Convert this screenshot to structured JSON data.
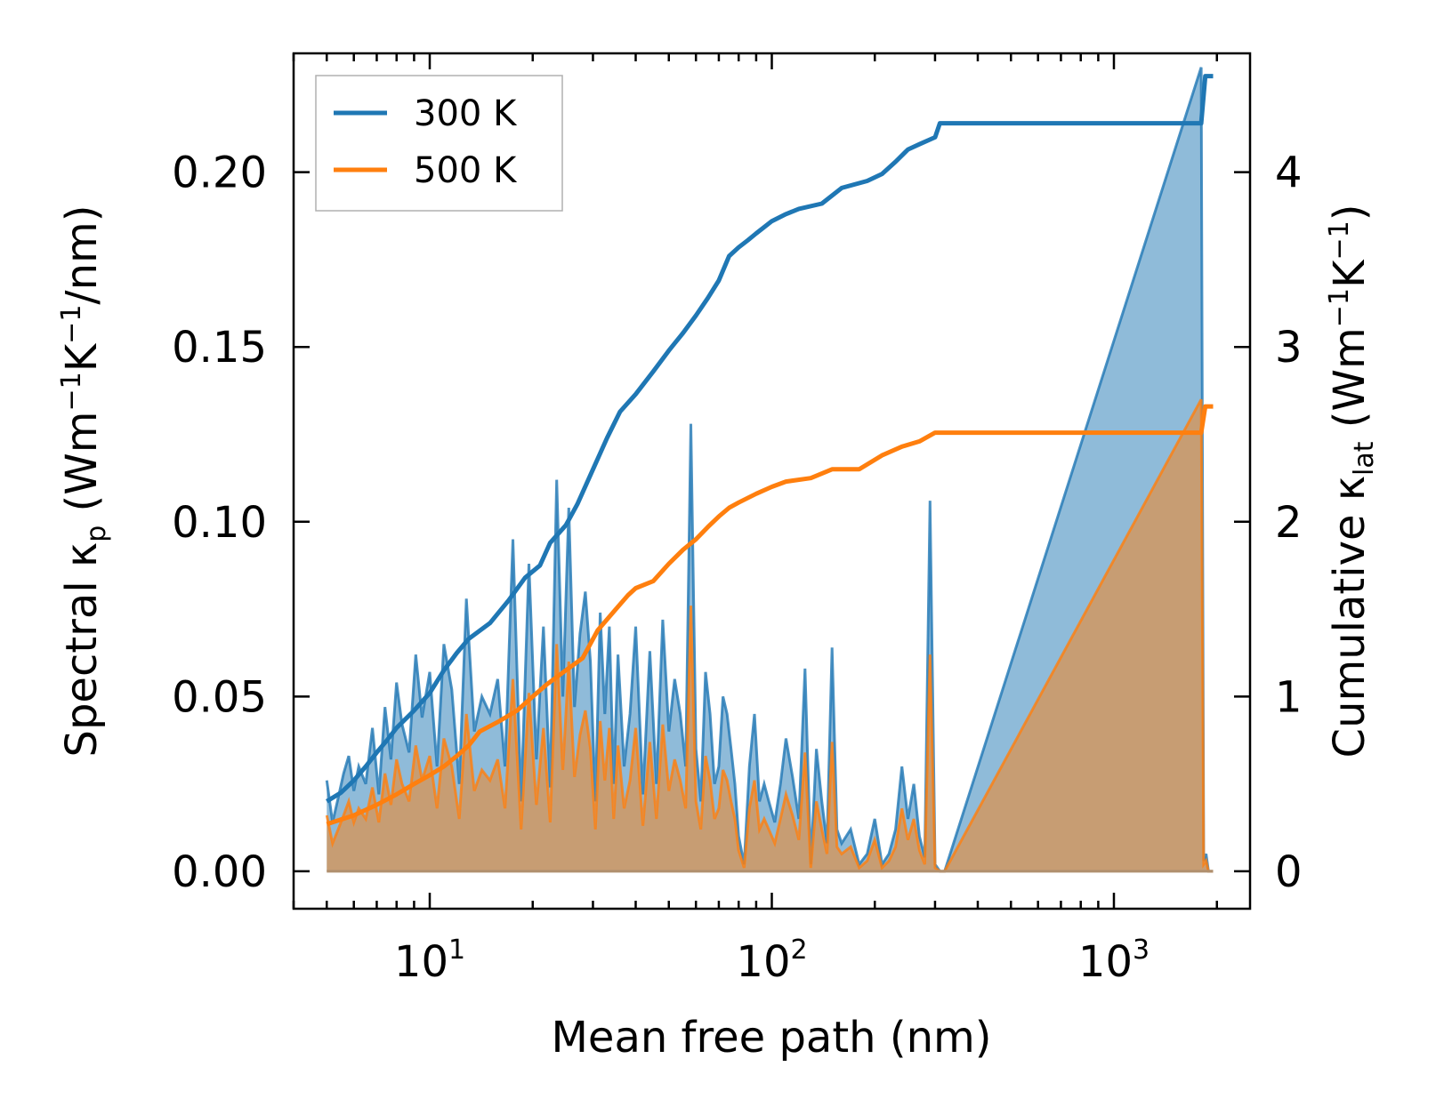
{
  "chart_data": {
    "type": "line",
    "x_scale": "log",
    "xlabel": "Mean free path (nm)",
    "xlim": [
      4,
      2500
    ],
    "x_ticks": [
      {
        "value": 10,
        "base": "10",
        "exp": "1"
      },
      {
        "value": 100,
        "base": "10",
        "exp": "2"
      },
      {
        "value": 1000,
        "base": "10",
        "exp": "3"
      }
    ],
    "y_left": {
      "label_text": "Spectral κ",
      "label_sub": "p",
      "label_units_a": " (Wm",
      "label_sup1": "−1",
      "label_units_b": "K",
      "label_sup2": "−1",
      "label_units_c": "/nm)",
      "lim": [
        -0.0107,
        0.234
      ],
      "ticks": [
        0.0,
        0.05,
        0.1,
        0.15,
        0.2
      ],
      "tick_labels": [
        "0.00",
        "0.05",
        "0.10",
        "0.15",
        "0.20"
      ]
    },
    "y_right": {
      "label_text": "Cumulative κ",
      "label_sub": "lat",
      "label_units_a": " (Wm",
      "label_sup1": "−1",
      "label_units_b": "K",
      "label_sup2": "−1",
      "label_units_c": ")",
      "lim": [
        -0.214,
        4.68
      ],
      "ticks": [
        0,
        1,
        2,
        3,
        4
      ],
      "tick_labels": [
        "0",
        "1",
        "2",
        "3",
        "4"
      ]
    },
    "legend": {
      "placement": "top-left"
    },
    "colors": {
      "300K": "#1f77b4",
      "500K": "#ff7f0e",
      "frame": "#000000"
    },
    "series": [
      {
        "name": "300 K",
        "color": "#1f77b4",
        "cumulative": {
          "x": [
            5.0,
            5.5,
            6.0,
            6.5,
            7.0,
            7.5,
            8.0,
            9.0,
            10.0,
            11.0,
            12.0,
            13.0,
            15.0,
            17.0,
            19.0,
            21.0,
            22.5,
            25.0,
            27.0,
            30.0,
            33.0,
            36.0,
            40.0,
            45.0,
            50.0,
            55.0,
            60.0,
            65.0,
            70.0,
            75.0,
            80.0,
            85.0,
            90.0,
            100.0,
            110.0,
            120.0,
            140.0,
            160.0,
            190.0,
            210.0,
            230.0,
            250.0,
            270.0,
            300.0,
            310.0,
            1800.0,
            1850.0,
            1950.0
          ],
          "y": [
            0.4,
            0.45,
            0.52,
            0.6,
            0.68,
            0.75,
            0.82,
            0.92,
            1.02,
            1.15,
            1.25,
            1.33,
            1.42,
            1.55,
            1.68,
            1.75,
            1.88,
            1.98,
            2.1,
            2.3,
            2.48,
            2.63,
            2.73,
            2.86,
            2.98,
            3.08,
            3.18,
            3.28,
            3.38,
            3.52,
            3.57,
            3.61,
            3.65,
            3.72,
            3.76,
            3.79,
            3.82,
            3.91,
            3.95,
            3.99,
            4.06,
            4.13,
            4.16,
            4.2,
            4.28,
            4.28,
            4.55,
            4.55
          ]
        },
        "spectral": {
          "x": [
            5.0,
            5.2,
            5.4,
            5.6,
            5.8,
            6.0,
            6.2,
            6.5,
            6.8,
            7.1,
            7.4,
            7.7,
            8.0,
            8.3,
            8.7,
            9.1,
            9.5,
            10.0,
            10.5,
            11.0,
            11.6,
            12.2,
            12.8,
            13.5,
            14.2,
            15.0,
            15.8,
            16.6,
            17.5,
            18.5,
            19.5,
            20.5,
            21.5,
            22.5,
            23.5,
            24.5,
            25.5,
            26.5,
            27.5,
            28.5,
            29.5,
            30.5,
            31.5,
            32.5,
            33.5,
            34.5,
            35.5,
            37.0,
            38.5,
            40.0,
            42.0,
            44.0,
            46.0,
            48.0,
            50.0,
            52.0,
            54.0,
            56.0,
            58.0,
            60.0,
            62.0,
            64.0,
            66.0,
            68.0,
            70.0,
            72.0,
            74.0,
            76.0,
            78.0,
            80.0,
            83.0,
            86.0,
            89.0,
            92.0,
            95.0,
            98.0,
            102.0,
            106.0,
            110.0,
            115.0,
            120.0,
            125.0,
            130.0,
            135.0,
            140.0,
            145.0,
            150.0,
            155.0,
            160.0,
            170.0,
            180.0,
            190.0,
            200.0,
            210.0,
            220.0,
            230.0,
            240.0,
            250.0,
            260.0,
            270.0,
            280.0,
            290.0,
            300.0,
            310.0,
            320.0,
            1800.0,
            1830.0,
            1860.0,
            1890.0,
            1920.0,
            1950.0
          ],
          "y300": [
            0.026,
            0.014,
            0.021,
            0.028,
            0.033,
            0.023,
            0.03,
            0.025,
            0.041,
            0.022,
            0.047,
            0.032,
            0.054,
            0.042,
            0.034,
            0.062,
            0.044,
            0.057,
            0.03,
            0.065,
            0.052,
            0.025,
            0.078,
            0.04,
            0.05,
            0.045,
            0.055,
            0.03,
            0.095,
            0.02,
            0.088,
            0.032,
            0.07,
            0.024,
            0.112,
            0.05,
            0.104,
            0.047,
            0.068,
            0.08,
            0.06,
            0.02,
            0.074,
            0.045,
            0.07,
            0.025,
            0.062,
            0.03,
            0.045,
            0.07,
            0.022,
            0.063,
            0.025,
            0.072,
            0.04,
            0.055,
            0.045,
            0.03,
            0.128,
            0.035,
            0.02,
            0.057,
            0.045,
            0.025,
            0.03,
            0.05,
            0.045,
            0.035,
            0.025,
            0.01,
            0.002,
            0.03,
            0.045,
            0.02,
            0.025,
            0.02,
            0.014,
            0.025,
            0.038,
            0.027,
            0.015,
            0.058,
            0.002,
            0.035,
            0.02,
            0.008,
            0.064,
            0.012,
            0.008,
            0.012,
            0.002,
            0.005,
            0.015,
            0.002,
            0.005,
            0.012,
            0.03,
            0.015,
            0.025,
            0.01,
            0.004,
            0.106,
            0.002,
            0.0,
            0.0,
            0.23,
            0.003,
            0.005,
            0.0,
            0.0,
            0.0
          ],
          "y500": [
            0.016,
            0.008,
            0.012,
            0.016,
            0.02,
            0.014,
            0.018,
            0.015,
            0.024,
            0.014,
            0.028,
            0.019,
            0.032,
            0.025,
            0.02,
            0.036,
            0.026,
            0.033,
            0.018,
            0.038,
            0.03,
            0.015,
            0.045,
            0.023,
            0.029,
            0.026,
            0.032,
            0.018,
            0.055,
            0.012,
            0.051,
            0.019,
            0.041,
            0.014,
            0.065,
            0.029,
            0.06,
            0.027,
            0.039,
            0.046,
            0.035,
            0.012,
            0.043,
            0.026,
            0.041,
            0.015,
            0.036,
            0.018,
            0.026,
            0.041,
            0.013,
            0.037,
            0.015,
            0.042,
            0.023,
            0.032,
            0.026,
            0.018,
            0.076,
            0.02,
            0.012,
            0.033,
            0.026,
            0.015,
            0.018,
            0.029,
            0.026,
            0.02,
            0.015,
            0.006,
            0.001,
            0.018,
            0.026,
            0.012,
            0.015,
            0.012,
            0.008,
            0.015,
            0.022,
            0.016,
            0.009,
            0.034,
            0.001,
            0.02,
            0.012,
            0.005,
            0.037,
            0.007,
            0.005,
            0.007,
            0.001,
            0.003,
            0.009,
            0.001,
            0.003,
            0.007,
            0.018,
            0.009,
            0.015,
            0.006,
            0.002,
            0.062,
            0.001,
            0.0,
            0.0,
            0.135,
            0.002,
            0.003,
            0.0,
            0.0,
            0.0
          ]
        }
      },
      {
        "name": "500 K",
        "color": "#ff7f0e",
        "cumulative": {
          "x": [
            5.0,
            6.0,
            7.0,
            8.0,
            9.0,
            10.0,
            11.0,
            12.0,
            13.0,
            14.0,
            16.0,
            18.0,
            20.0,
            22.0,
            25.0,
            28.0,
            31.0,
            35.0,
            38.0,
            40.0,
            45.0,
            50.0,
            55.0,
            60.0,
            65.0,
            70.0,
            75.0,
            80.0,
            90.0,
            100.0,
            110.0,
            130.0,
            150.0,
            180.0,
            210.0,
            240.0,
            270.0,
            300.0,
            310.0,
            1800.0,
            1850.0,
            1950.0
          ],
          "y": [
            0.27,
            0.32,
            0.38,
            0.44,
            0.5,
            0.55,
            0.6,
            0.66,
            0.72,
            0.8,
            0.86,
            0.92,
            1.0,
            1.07,
            1.15,
            1.22,
            1.38,
            1.5,
            1.58,
            1.62,
            1.66,
            1.76,
            1.84,
            1.9,
            1.97,
            2.03,
            2.08,
            2.11,
            2.16,
            2.2,
            2.23,
            2.25,
            2.3,
            2.3,
            2.38,
            2.43,
            2.46,
            2.51,
            2.51,
            2.51,
            2.66,
            2.66
          ]
        }
      }
    ]
  }
}
